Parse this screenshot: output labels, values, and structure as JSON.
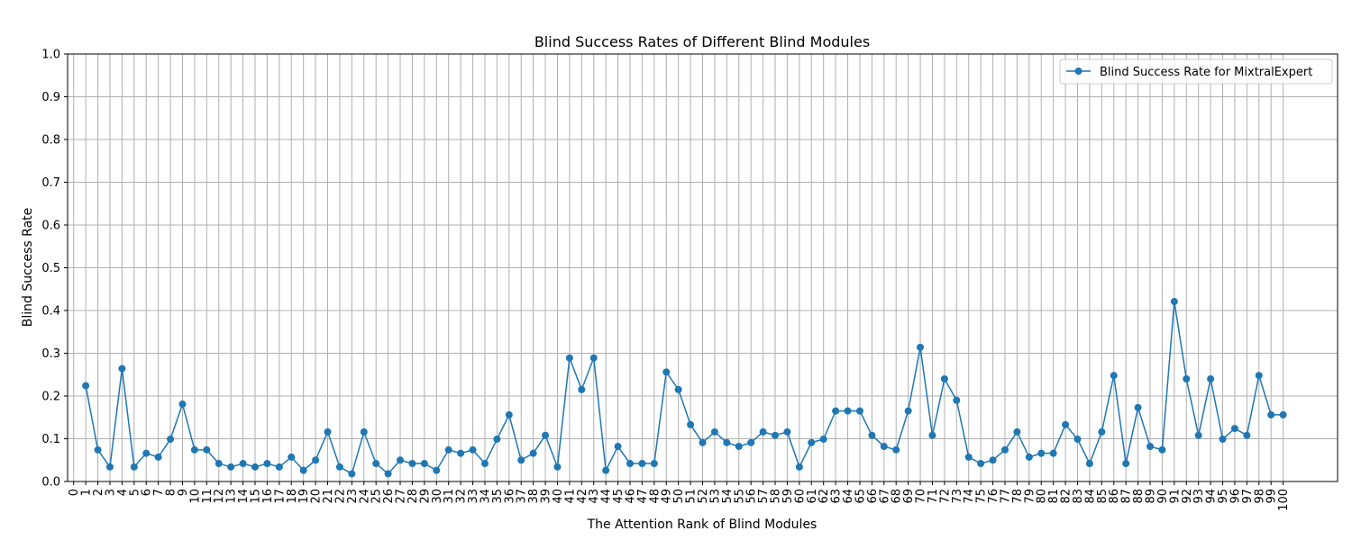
{
  "chart_data": {
    "type": "line",
    "title": "Blind Success Rates of Different Blind Modules",
    "xlabel": "The Attention Rank of Blind Modules",
    "ylabel": "Blind Success Rate",
    "xlim": [
      -0.5,
      104.5
    ],
    "ylim": [
      0,
      1.0
    ],
    "x_ticks": [
      0,
      1,
      2,
      3,
      4,
      5,
      6,
      7,
      8,
      9,
      10,
      11,
      12,
      13,
      14,
      15,
      16,
      17,
      18,
      19,
      20,
      21,
      22,
      23,
      24,
      25,
      26,
      27,
      28,
      29,
      30,
      31,
      32,
      33,
      34,
      35,
      36,
      37,
      38,
      39,
      40,
      41,
      42,
      43,
      44,
      45,
      46,
      47,
      48,
      49,
      50,
      51,
      52,
      53,
      54,
      55,
      56,
      57,
      58,
      59,
      60,
      61,
      62,
      63,
      64,
      65,
      66,
      67,
      68,
      69,
      70,
      71,
      72,
      73,
      74,
      75,
      76,
      77,
      78,
      79,
      80,
      81,
      82,
      83,
      84,
      85,
      86,
      87,
      88,
      89,
      90,
      91,
      92,
      93,
      94,
      95,
      96,
      97,
      98,
      99,
      100
    ],
    "y_ticks": [
      "0.0",
      "0.1",
      "0.2",
      "0.3",
      "0.4",
      "0.5",
      "0.6",
      "0.7",
      "0.8",
      "0.9",
      "1.0"
    ],
    "grid": true,
    "legend_position": "top-right",
    "series": [
      {
        "name": "Blind Success Rate for MixtralExpert",
        "color": "#1f77b4",
        "x": [
          1,
          2,
          3,
          4,
          5,
          6,
          7,
          8,
          9,
          10,
          11,
          12,
          13,
          14,
          15,
          16,
          17,
          18,
          19,
          20,
          21,
          22,
          23,
          24,
          25,
          26,
          27,
          28,
          29,
          30,
          31,
          32,
          33,
          34,
          35,
          36,
          37,
          38,
          39,
          40,
          41,
          42,
          43,
          44,
          45,
          46,
          47,
          48,
          49,
          50,
          51,
          52,
          53,
          54,
          55,
          56,
          57,
          58,
          59,
          60,
          61,
          62,
          63,
          64,
          65,
          66,
          67,
          68,
          69,
          70,
          71,
          72,
          73,
          74,
          75,
          76,
          77,
          78,
          79,
          80,
          81,
          82,
          83,
          84,
          85,
          86,
          87,
          88,
          89,
          90,
          91,
          92,
          93,
          94,
          95,
          96,
          97,
          98,
          99,
          100
        ],
        "values": [
          0.224,
          0.074,
          0.034,
          0.264,
          0.034,
          0.066,
          0.057,
          0.099,
          0.181,
          0.074,
          0.074,
          0.042,
          0.034,
          0.042,
          0.034,
          0.042,
          0.034,
          0.057,
          0.026,
          0.05,
          0.116,
          0.034,
          0.018,
          0.116,
          0.042,
          0.018,
          0.05,
          0.042,
          0.042,
          0.026,
          0.074,
          0.066,
          0.074,
          0.042,
          0.099,
          0.156,
          0.05,
          0.066,
          0.108,
          0.034,
          0.289,
          0.215,
          0.289,
          0.026,
          0.082,
          0.042,
          0.042,
          0.042,
          0.256,
          0.215,
          0.133,
          0.091,
          0.116,
          0.091,
          0.082,
          0.091,
          0.116,
          0.108,
          0.116,
          0.034,
          0.091,
          0.099,
          0.165,
          0.165,
          0.165,
          0.108,
          0.082,
          0.074,
          0.165,
          0.314,
          0.108,
          0.24,
          0.19,
          0.057,
          0.042,
          0.05,
          0.074,
          0.116,
          0.057,
          0.066,
          0.066,
          0.133,
          0.099,
          0.042,
          0.116,
          0.248,
          0.042,
          0.173,
          0.082,
          0.074,
          0.421,
          0.24,
          0.108,
          0.24,
          0.099,
          0.124,
          0.108,
          0.248,
          0.156,
          0.156
        ]
      }
    ]
  }
}
